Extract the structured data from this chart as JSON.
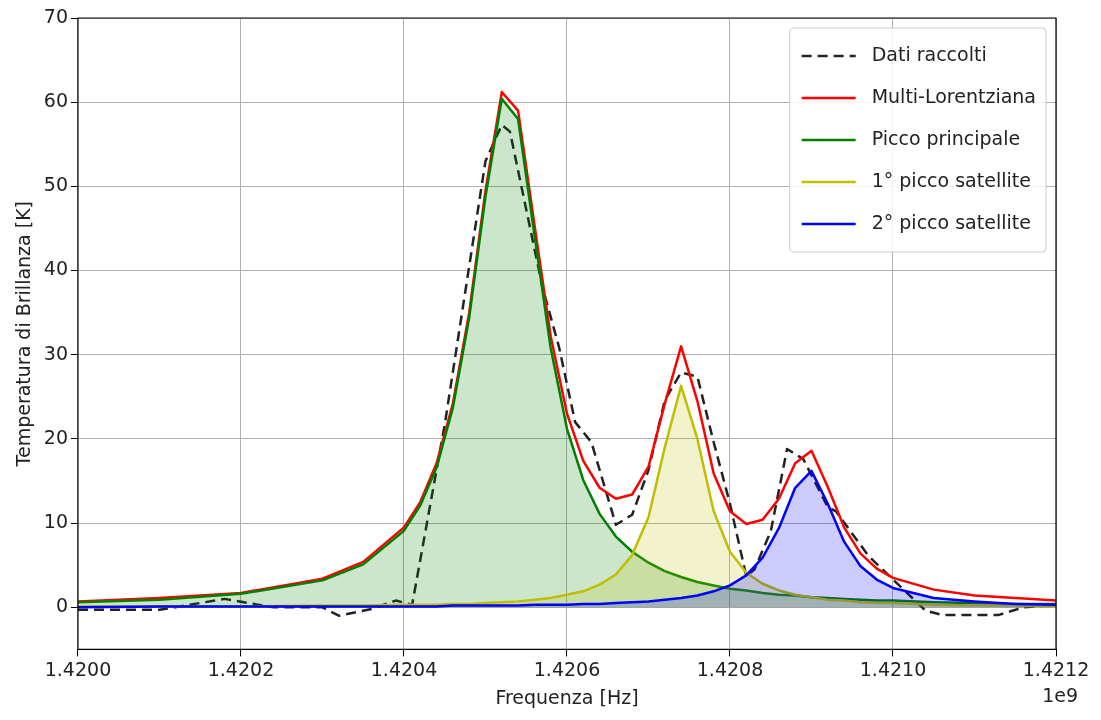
{
  "chart_data": {
    "type": "line",
    "xlabel": "Frequenza [Hz]",
    "ylabel": "Temperatura di Brillanza [K]",
    "annotations": [
      "1e9"
    ],
    "xlim": [
      1.42,
      1.4212
    ],
    "xticks": [
      {
        "value": 1.42,
        "label": "1.4200"
      },
      {
        "value": 1.4202,
        "label": "1.4202"
      },
      {
        "value": 1.4204,
        "label": "1.4204"
      },
      {
        "value": 1.4206,
        "label": "1.4206"
      },
      {
        "value": 1.4208,
        "label": "1.4208"
      },
      {
        "value": 1.421,
        "label": "1.4210"
      },
      {
        "value": 1.4212,
        "label": "1.4212"
      }
    ],
    "ylim": [
      -5,
      70
    ],
    "yticks": [
      0,
      10,
      20,
      30,
      40,
      50,
      60,
      70
    ],
    "grid": true,
    "legend": "top right",
    "marker": "none",
    "series": [
      {
        "name": "Dati raccolti",
        "type": "line",
        "line_style": "dashed",
        "color": "#222222",
        "x": [
          1.42,
          1.4201,
          1.42018,
          1.42024,
          1.4203,
          1.42032,
          1.42036,
          1.42039,
          1.42041,
          1.42045,
          1.42048,
          1.4205,
          1.42052,
          1.42053,
          1.42057,
          1.42059,
          1.42061,
          1.42063,
          1.42066,
          1.42068,
          1.4207,
          1.42072,
          1.42074,
          1.42076,
          1.42078,
          1.4208,
          1.42082,
          1.42083,
          1.42085,
          1.42087,
          1.42089,
          1.42092,
          1.42093,
          1.42097,
          1.421,
          1.42104,
          1.42106,
          1.42113,
          1.42116,
          1.4212
        ],
        "values": [
          -0.3,
          -0.3,
          1.0,
          0,
          0,
          -1.0,
          -0.2,
          0.8,
          0.3,
          21.7,
          40.5,
          53,
          57.3,
          56.5,
          38,
          31,
          22,
          19.6,
          9.8,
          11,
          16.3,
          24.6,
          27.9,
          27.4,
          19.6,
          12.3,
          3.7,
          4.5,
          9,
          18.8,
          17.6,
          11.9,
          11.4,
          6.1,
          3.3,
          -0.4,
          -0.9,
          -0.9,
          0,
          0.3
        ]
      },
      {
        "name": "Multi-Lorentziana",
        "type": "line",
        "color": "#ff0000",
        "x": [
          1.42,
          1.4201,
          1.4202,
          1.4203,
          1.42035,
          1.4204,
          1.42042,
          1.42044,
          1.42046,
          1.42048,
          1.4205,
          1.42052,
          1.42054,
          1.42056,
          1.42058,
          1.4206,
          1.42062,
          1.42064,
          1.42066,
          1.42068,
          1.4207,
          1.42072,
          1.42074,
          1.42076,
          1.42078,
          1.4208,
          1.42082,
          1.42084,
          1.42086,
          1.42088,
          1.4209,
          1.42092,
          1.42094,
          1.42096,
          1.42098,
          1.421,
          1.42105,
          1.4211,
          1.42115,
          1.4212
        ],
        "values": [
          0.7,
          1.1,
          1.7,
          3.4,
          5.4,
          9.5,
          12.5,
          17.1,
          24.2,
          35.0,
          49.5,
          61.2,
          59.0,
          45.5,
          32.2,
          23.0,
          17.4,
          14.2,
          12.9,
          13.4,
          16.7,
          24.2,
          31.0,
          24.5,
          15.9,
          11.4,
          9.9,
          10.4,
          12.9,
          17.1,
          18.6,
          14.3,
          9.5,
          6.4,
          4.6,
          3.5,
          2.1,
          1.4,
          1.1,
          0.8
        ]
      },
      {
        "name": "Picco principale",
        "type": "area",
        "color": "#008000",
        "x": [
          1.42,
          1.4201,
          1.4202,
          1.4203,
          1.42035,
          1.4204,
          1.42042,
          1.42044,
          1.42046,
          1.42048,
          1.4205,
          1.42052,
          1.42054,
          1.42056,
          1.42058,
          1.4206,
          1.42062,
          1.42064,
          1.42066,
          1.42068,
          1.4207,
          1.42072,
          1.42074,
          1.42076,
          1.42078,
          1.4208,
          1.42082,
          1.42084,
          1.42086,
          1.42088,
          1.4209,
          1.42092,
          1.42094,
          1.42096,
          1.42098,
          1.421,
          1.42105,
          1.4211,
          1.42115,
          1.4212
        ],
        "values": [
          0.6,
          0.9,
          1.6,
          3.2,
          5.1,
          9.1,
          12.1,
          16.6,
          23.7,
          34.4,
          48.8,
          60.4,
          58.0,
          44.3,
          30.8,
          21.2,
          15.1,
          11.1,
          8.4,
          6.6,
          5.3,
          4.3,
          3.6,
          3.0,
          2.6,
          2.2,
          2.0,
          1.7,
          1.5,
          1.4,
          1.2,
          1.1,
          1.0,
          0.9,
          0.8,
          0.8,
          0.6,
          0.5,
          0.4,
          0.4
        ]
      },
      {
        "name": "1° picco satellite",
        "type": "area",
        "color": "#bfbf00",
        "x": [
          1.42,
          1.4201,
          1.4202,
          1.4203,
          1.42035,
          1.4204,
          1.42042,
          1.42044,
          1.42046,
          1.42048,
          1.4205,
          1.42052,
          1.42054,
          1.42056,
          1.42058,
          1.4206,
          1.42062,
          1.42064,
          1.42066,
          1.42068,
          1.4207,
          1.42072,
          1.42074,
          1.42076,
          1.42078,
          1.4208,
          1.42082,
          1.42084,
          1.42086,
          1.42088,
          1.4209,
          1.42092,
          1.42094,
          1.42096,
          1.42098,
          1.421,
          1.42105,
          1.4211,
          1.42115,
          1.4212
        ],
        "values": [
          0.1,
          0.1,
          0.1,
          0.2,
          0.2,
          0.3,
          0.3,
          0.3,
          0.4,
          0.4,
          0.5,
          0.6,
          0.7,
          0.9,
          1.1,
          1.5,
          1.9,
          2.7,
          3.9,
          6.2,
          10.7,
          19.0,
          26.3,
          20.0,
          11.4,
          6.6,
          4.1,
          2.8,
          2.0,
          1.5,
          1.2,
          0.9,
          0.8,
          0.6,
          0.5,
          0.5,
          0.3,
          0.2,
          0.2,
          0.1
        ]
      },
      {
        "name": "2° picco satellite",
        "type": "area",
        "color": "#0000ff",
        "x": [
          1.42,
          1.4201,
          1.4202,
          1.4203,
          1.42035,
          1.4204,
          1.42042,
          1.42044,
          1.42046,
          1.42048,
          1.4205,
          1.42052,
          1.42054,
          1.42056,
          1.42058,
          1.4206,
          1.42062,
          1.42064,
          1.42066,
          1.42068,
          1.4207,
          1.42072,
          1.42074,
          1.42076,
          1.42078,
          1.4208,
          1.42082,
          1.42084,
          1.42086,
          1.42088,
          1.4209,
          1.42092,
          1.42094,
          1.42096,
          1.42098,
          1.421,
          1.42105,
          1.4211,
          1.42115,
          1.4212
        ],
        "values": [
          0.0,
          0.1,
          0.1,
          0.1,
          0.1,
          0.1,
          0.1,
          0.1,
          0.2,
          0.2,
          0.2,
          0.2,
          0.2,
          0.3,
          0.3,
          0.3,
          0.4,
          0.4,
          0.5,
          0.6,
          0.7,
          0.9,
          1.1,
          1.4,
          1.9,
          2.6,
          3.8,
          5.9,
          9.4,
          14.2,
          16.2,
          12.3,
          7.8,
          4.9,
          3.3,
          2.3,
          1.1,
          0.7,
          0.4,
          0.3
        ]
      }
    ]
  }
}
